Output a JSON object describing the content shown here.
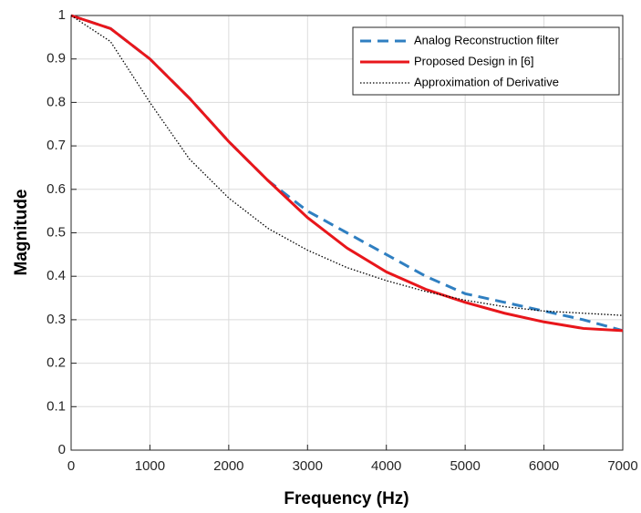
{
  "chart_data": {
    "type": "line",
    "x_label": "Frequency (Hz)",
    "y_label": "Magnitude",
    "x": [
      0,
      500,
      1000,
      1500,
      2000,
      2500,
      3000,
      3500,
      4000,
      4500,
      5000,
      5500,
      6000,
      6500,
      7000
    ],
    "series": [
      {
        "name": "Analog Reconstruction filter",
        "color": "#2f7fc1",
        "style": "dashed",
        "values": [
          1,
          0.97,
          0.9,
          0.81,
          0.71,
          0.62,
          0.55,
          0.5,
          0.45,
          0.4,
          0.36,
          0.34,
          0.32,
          0.3,
          0.275
        ]
      },
      {
        "name": "Proposed Design in [6]",
        "color": "#e8161b",
        "style": "solid",
        "values": [
          1,
          0.97,
          0.9,
          0.81,
          0.71,
          0.62,
          0.535,
          0.465,
          0.41,
          0.37,
          0.34,
          0.315,
          0.295,
          0.28,
          0.275
        ]
      },
      {
        "name": "Approximation of Derivative",
        "color": "#000000",
        "style": "dotted",
        "values": [
          1,
          0.94,
          0.8,
          0.67,
          0.58,
          0.51,
          0.46,
          0.42,
          0.39,
          0.365,
          0.345,
          0.33,
          0.32,
          0.315,
          0.31
        ]
      }
    ],
    "xlim": [
      0,
      7000
    ],
    "xticks": [
      0,
      1000,
      2000,
      3000,
      4000,
      5000,
      6000,
      7000
    ],
    "ylim": [
      0,
      1
    ],
    "yticks": [
      0,
      0.1,
      0.2,
      0.3,
      0.4,
      0.5,
      0.6,
      0.7,
      0.8,
      0.9,
      1
    ],
    "grid": true,
    "legend": "upper right"
  }
}
